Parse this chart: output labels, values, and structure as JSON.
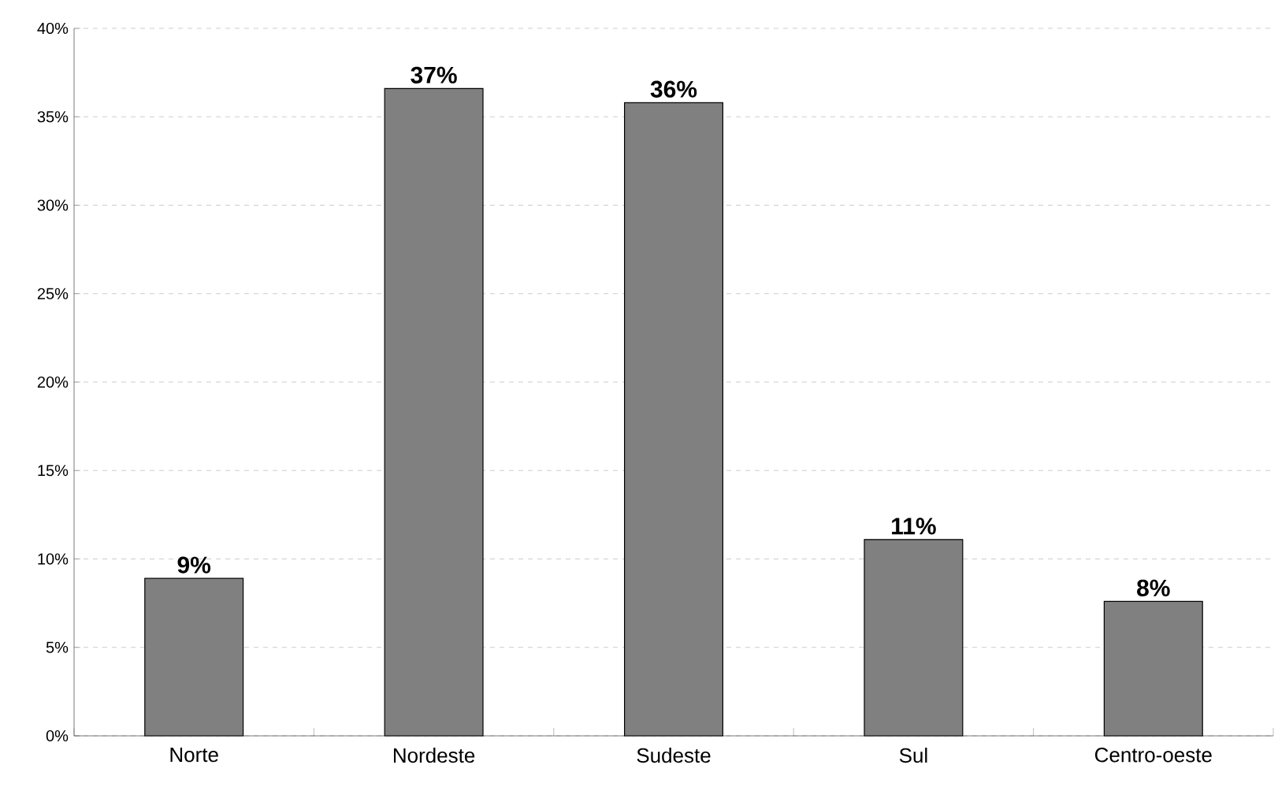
{
  "chart_data": {
    "type": "bar",
    "categories": [
      "Norte",
      "Nordeste",
      "Sudeste",
      "Sul",
      "Centro-oeste"
    ],
    "values": [
      8.9,
      36.6,
      35.8,
      11.1,
      7.6
    ],
    "value_labels": [
      "9%",
      "37%",
      "36%",
      "11%",
      "8%"
    ],
    "color": "#808080",
    "ylim": [
      0,
      40
    ],
    "yticks": [
      {
        "value": 0,
        "label": "0%"
      },
      {
        "value": 5,
        "label": "5%"
      },
      {
        "value": 10,
        "label": "10%"
      },
      {
        "value": 15,
        "label": "15%"
      },
      {
        "value": 20,
        "label": "20%"
      },
      {
        "value": 25,
        "label": "25%"
      },
      {
        "value": 30,
        "label": "30%"
      },
      {
        "value": 35,
        "label": "35%"
      },
      {
        "value": 40,
        "label": "40%"
      }
    ],
    "grid": "y"
  }
}
